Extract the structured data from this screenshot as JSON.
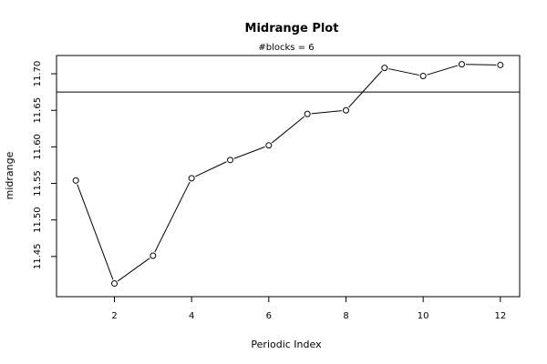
{
  "chart_data": {
    "type": "line",
    "title": "Midrange Plot",
    "subtitle": "#blocks =  6",
    "xlabel": "Periodic Index",
    "ylabel": "midrange",
    "x": [
      1,
      2,
      3,
      4,
      5,
      6,
      7,
      8,
      9,
      10,
      11,
      12
    ],
    "y": [
      11.554,
      11.413,
      11.451,
      11.557,
      11.582,
      11.602,
      11.645,
      11.65,
      11.708,
      11.697,
      11.713,
      11.712
    ],
    "reference_line": 11.675,
    "xlim": [
      0.5,
      12.5
    ],
    "ylim": [
      11.395,
      11.725
    ],
    "xticks": [
      2,
      4,
      6,
      8,
      10,
      12
    ],
    "xtick_labels": [
      "2",
      "4",
      "6",
      "8",
      "10",
      "12"
    ],
    "yticks": [
      11.45,
      11.5,
      11.55,
      11.6,
      11.65,
      11.7
    ],
    "ytick_labels": [
      "11.45",
      "11.50",
      "11.55",
      "11.60",
      "11.65",
      "11.70"
    ],
    "grid": false,
    "line_color": "#000000",
    "marker": "open-circle"
  }
}
